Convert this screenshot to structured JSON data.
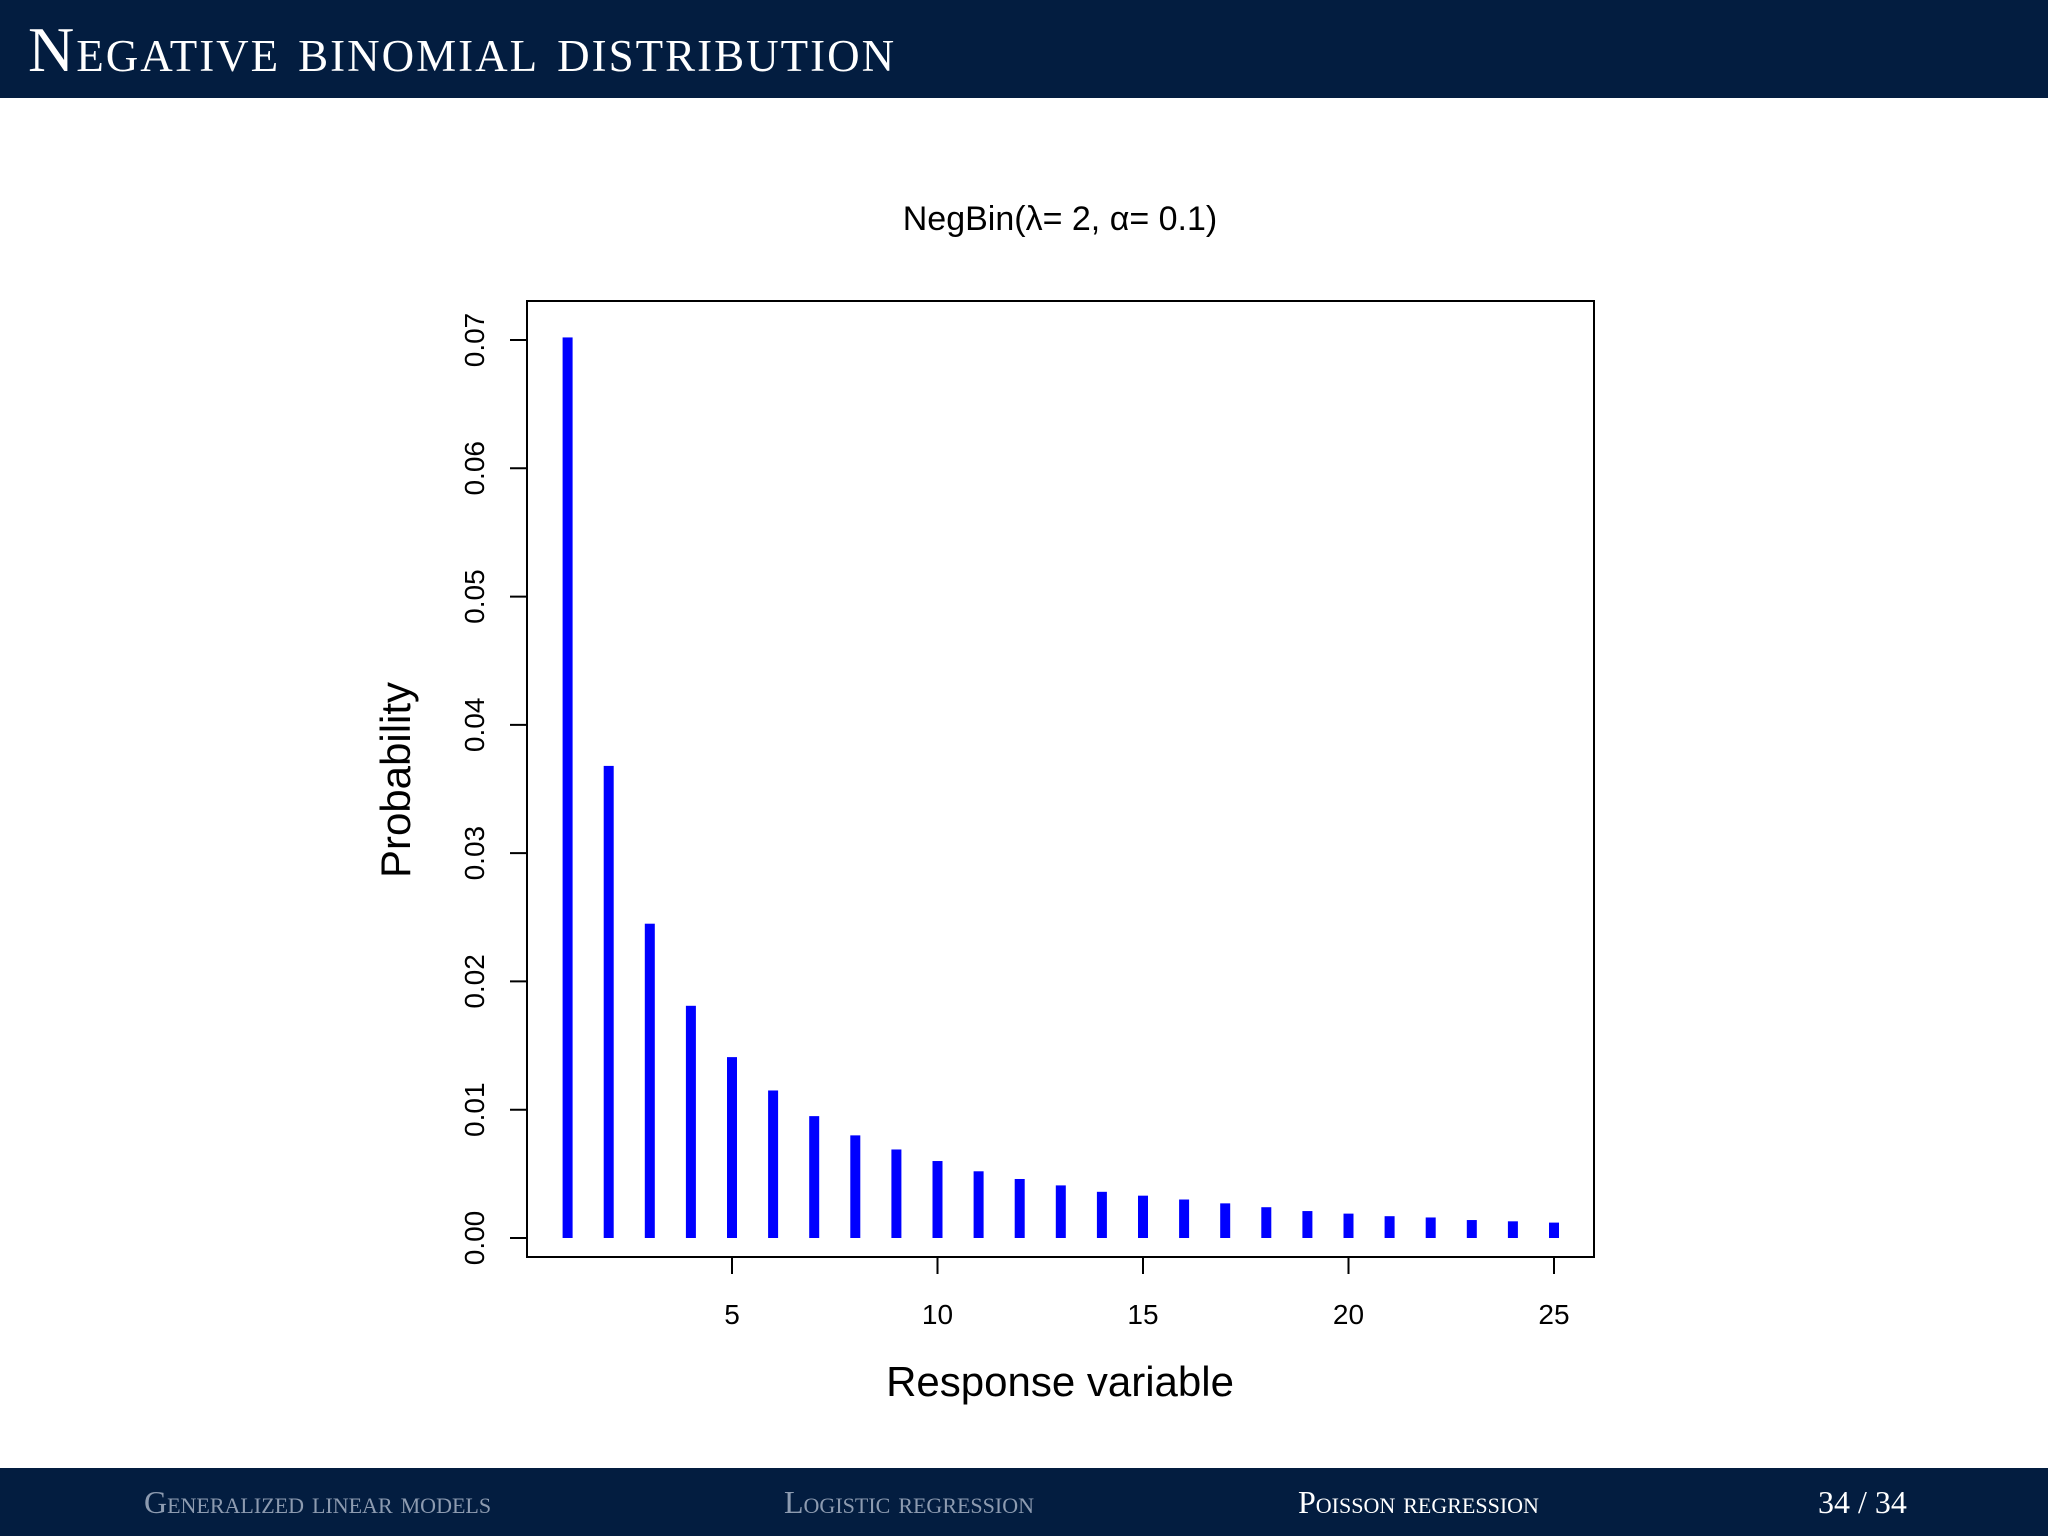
{
  "slide": {
    "title": "Negative binomial distribution",
    "page_current": "34",
    "page_total": "34",
    "page_label": "34 / 34"
  },
  "footer": {
    "sections": [
      {
        "label": "Generalized linear models",
        "active": false
      },
      {
        "label": "Logistic regression",
        "active": false
      },
      {
        "label": "Poisson regression",
        "active": true
      }
    ]
  },
  "colors": {
    "header_bg": "#031d40",
    "bar": "#0000ff",
    "footer_inactive": "#8d9bb0",
    "footer_active": "#ffffff"
  },
  "chart_data": {
    "type": "bar",
    "title": "NegBin(λ= 2, α= 0.1)",
    "xlabel": "Response variable",
    "ylabel": "Probability",
    "x": [
      1,
      2,
      3,
      4,
      5,
      6,
      7,
      8,
      9,
      10,
      11,
      12,
      13,
      14,
      15,
      16,
      17,
      18,
      19,
      20,
      21,
      22,
      23,
      24,
      25
    ],
    "values": [
      0.0702,
      0.0368,
      0.0245,
      0.0181,
      0.0141,
      0.0115,
      0.0095,
      0.008,
      0.0069,
      0.006,
      0.0052,
      0.0046,
      0.0041,
      0.0036,
      0.0033,
      0.003,
      0.0027,
      0.0024,
      0.0021,
      0.0019,
      0.0017,
      0.0016,
      0.0014,
      0.0013,
      0.0012
    ],
    "xticks": [
      5,
      10,
      15,
      20,
      25
    ],
    "yticks": [
      "0.00",
      "0.01",
      "0.02",
      "0.03",
      "0.04",
      "0.05",
      "0.06",
      "0.07"
    ],
    "ylim": [
      0,
      0.07
    ],
    "xlim": [
      0,
      26
    ],
    "grid": false,
    "legend": null,
    "bar_style": "spike (type='h')"
  }
}
